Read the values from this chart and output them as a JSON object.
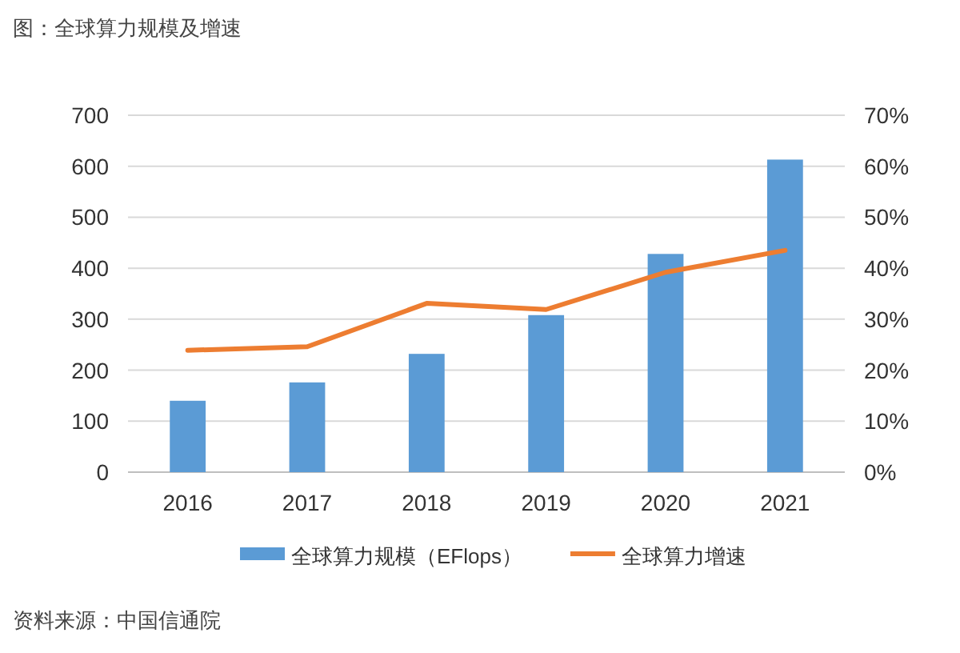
{
  "chart_data": {
    "type": "bar",
    "title": "图：全球算力规模及增速",
    "categories": [
      "2016",
      "2017",
      "2018",
      "2019",
      "2020",
      "2021"
    ],
    "series": [
      {
        "name": "全球算力规模（EFlops）",
        "color": "#5b9bd5",
        "values": [
          140,
          176,
          232,
          308,
          428,
          613
        ]
      },
      {
        "name": "全球算力增速",
        "type": "line",
        "axis": "y2",
        "color": "#ed7d31",
        "values": [
          23.9,
          24.6,
          33.1,
          31.9,
          39.2,
          43.5
        ]
      }
    ],
    "ylim": [
      0,
      700
    ],
    "yticks": [
      0,
      100,
      200,
      300,
      400,
      500,
      600,
      700
    ],
    "y2lim": [
      0,
      70
    ],
    "y2ticks": [
      {
        "value": 0,
        "label": "0%"
      },
      {
        "value": 10,
        "label": "10%"
      },
      {
        "value": 20,
        "label": "20%"
      },
      {
        "value": 30,
        "label": "30%"
      },
      {
        "value": 40,
        "label": "40%"
      },
      {
        "value": 50,
        "label": "50%"
      },
      {
        "value": 60,
        "label": "60%"
      },
      {
        "value": 70,
        "label": "70%"
      }
    ],
    "grid": "y",
    "legend": "bottom",
    "marker": "none",
    "line_style": "solid",
    "annotations": [
      "资料来源：中国信通院"
    ]
  }
}
